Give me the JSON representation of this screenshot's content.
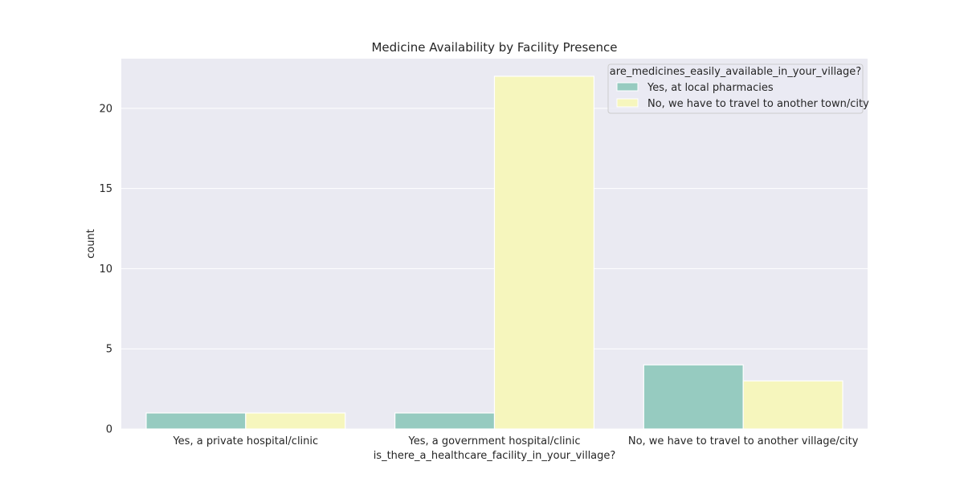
{
  "chart_data": {
    "type": "bar",
    "title": "Medicine Availability by Facility Presence",
    "xlabel": "is_there_a_healthcare_facility_in_your_village?",
    "ylabel": "count",
    "categories": [
      "Yes, a private hospital/clinic",
      "Yes, a government hospital/clinic",
      "No, we have to travel to another village/city"
    ],
    "series": [
      {
        "name": "Yes, at local pharmacies",
        "values": [
          1,
          1,
          4
        ],
        "color": "#96cbc0"
      },
      {
        "name": "No, we have to travel to another town/city",
        "values": [
          1,
          22,
          3
        ],
        "color": "#f6f6bd"
      }
    ],
    "legend_title": "are_medicines_easily_available_in_your_village?",
    "legend_position": "top-right",
    "ylim": [
      0,
      23.1
    ],
    "yticks": [
      0,
      5,
      10,
      15,
      20
    ],
    "grid": true,
    "background_color": "#eaeaf2",
    "grid_color": "#ffffff"
  }
}
